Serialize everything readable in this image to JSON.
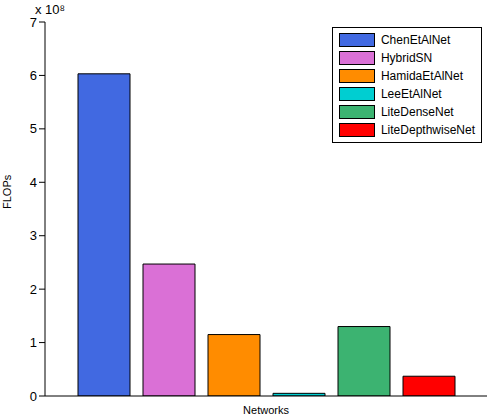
{
  "chart_data": {
    "type": "bar",
    "ylabel": "FLOPs",
    "xlabel": "Networks",
    "annotation": "x 10⁸",
    "categories": [
      null
    ],
    "series": [
      {
        "name": "ChenEtAlNet",
        "color": "#4169e1",
        "values": [
          6.03
        ]
      },
      {
        "name": "HybridSN",
        "color": "#da70d6",
        "values": [
          2.47
        ]
      },
      {
        "name": "HamidaEtAlNet",
        "color": "#ff8c00",
        "values": [
          1.15
        ]
      },
      {
        "name": "LeeEtAlNet",
        "color": "#00ced1",
        "values": [
          0.05
        ]
      },
      {
        "name": "LiteDenseNet",
        "color": "#3cb371",
        "values": [
          1.3
        ]
      },
      {
        "name": "LiteDepthwiseNet",
        "color": "#ff0000",
        "values": [
          0.37
        ]
      }
    ],
    "ylim": [
      0,
      7
    ],
    "yticks": [
      0,
      1,
      2,
      3,
      4,
      5,
      6,
      7
    ],
    "legend": "upper right",
    "tick_labels": "y"
  }
}
